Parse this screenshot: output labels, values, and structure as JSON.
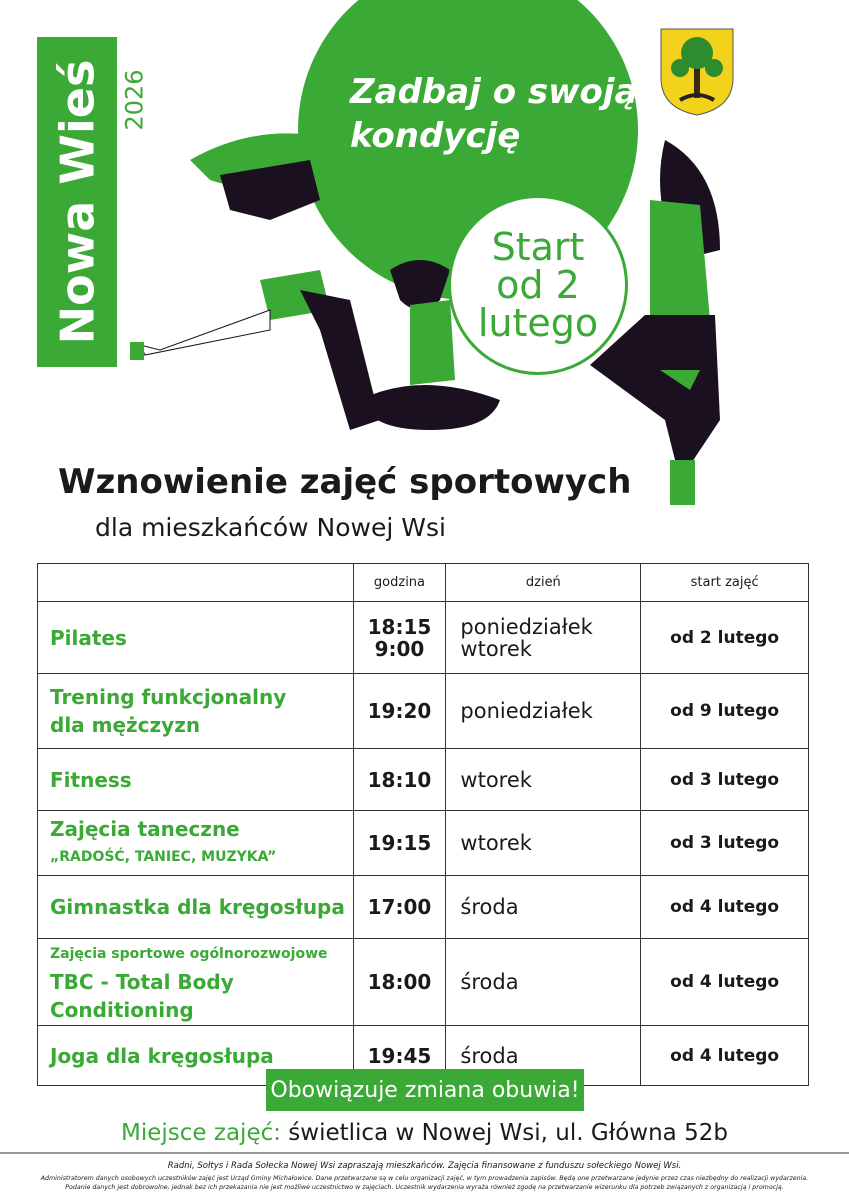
{
  "brand": {
    "green": "#3aa935",
    "dark": "#1a1020"
  },
  "poster": {
    "location_title": "Nowa Wieś",
    "year": "2026",
    "slogan_line1": "Zadbaj o swoją",
    "slogan_line2": "kondycję",
    "start_line1": "Start",
    "start_line2": "od 2",
    "start_line3": "lutego",
    "crest_icon": "coat-of-arms-tree",
    "heading": "Wznowienie zajęć sportowych",
    "subheading": "dla mieszkańców Nowej Wsi"
  },
  "table": {
    "headers": [
      "",
      "godzina",
      "dzień",
      "start zajęć"
    ],
    "rows": [
      {
        "name": "Pilates",
        "name2": "",
        "time": "18:15",
        "time2": "9:00",
        "day": "poniedziałek",
        "day2": "wtorek",
        "start": "od 2 lutego"
      },
      {
        "name": "Trening funkcjonalny",
        "name2": "dla mężczyzn",
        "time": "19:20",
        "time2": "",
        "day": "poniedziałek",
        "day2": "",
        "start": "od 9 lutego"
      },
      {
        "name": "Fitness",
        "name2": "",
        "time": "18:10",
        "time2": "",
        "day": "wtorek",
        "day2": "",
        "start": "od 3 lutego"
      },
      {
        "name": "Zajęcia taneczne",
        "name2": "„RADOŚĆ, TANIEC, MUZYKA”",
        "time": "19:15",
        "time2": "",
        "day": "wtorek",
        "day2": "",
        "start": "od 3 lutego"
      },
      {
        "name": "Gimnastka dla kręgosłupa",
        "name2": "",
        "time": "17:00",
        "time2": "",
        "day": "środa",
        "day2": "",
        "start": "od 4 lutego"
      },
      {
        "name": "Zajęcia sportowe ogólnorozwojowe",
        "name2": "TBC - Total Body Conditioning",
        "time": "18:00",
        "time2": "",
        "day": "środa",
        "day2": "",
        "start": "od 4 lutego"
      },
      {
        "name": "Joga dla kręgosłupa",
        "name2": "",
        "time": "19:45",
        "time2": "",
        "day": "środa",
        "day2": "",
        "start": "od 4 lutego"
      }
    ]
  },
  "notice": "Obowiązuje zmiana obuwia!",
  "place": {
    "label": "Miejsce zajęć:",
    "value": "świetlica w Nowej Wsi, ul. Główna 52b"
  },
  "footer": {
    "line1": "Radni, Sołtys i Rada Sołecka Nowej Wsi zapraszają mieszkańców. Zajęcia finansowane z funduszu sołeckiego Nowej Wsi.",
    "line2": "Administratorem danych osobowych uczestników zajęć jest Urząd Gminy Michałowice. Dane przetwarzane są w celu organizacji zajęć, w tym prowadzenia zapisów. Będą one przetwarzane jedynie przez czas niezbędny do realizacji wydarzenia.",
    "line3": "Podanie danych jest dobrowolne, jednak bez ich przekazania nie jest możliwe uczestnictwo w zajęciach. Uczestnik wydarzenia wyraża również zgodę na przetwarzanie wizerunku dla potrzeb związanych z organizacją i promocją."
  }
}
